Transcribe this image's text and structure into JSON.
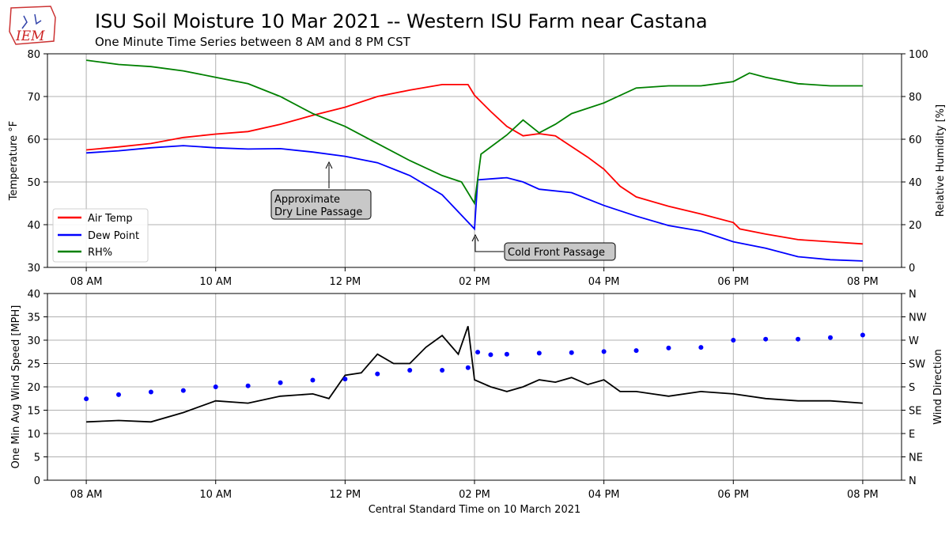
{
  "logo": {
    "text": "IEM"
  },
  "chart_data": [
    {
      "type": "line",
      "title": "ISU Soil Moisture 10 Mar 2021 -- Western ISU Farm near Castana",
      "subtitle": "One Minute Time Series between 8 AM and 8 PM CST",
      "xlabel": "",
      "ylabel": "Temperature °F",
      "y2label": "Relative Humidity [%]",
      "y2label_color": "#008000",
      "x_range": [
        7.4,
        20.6
      ],
      "ylim": [
        30,
        80
      ],
      "y2lim": [
        0,
        100
      ],
      "x_ticks": [
        8,
        10,
        12,
        14,
        16,
        18,
        20
      ],
      "x_tick_labels": [
        "08 AM",
        "10 AM",
        "12 PM",
        "02 PM",
        "04 PM",
        "06 PM",
        "08 PM"
      ],
      "y_ticks": [
        30,
        40,
        50,
        60,
        70,
        80
      ],
      "y2_ticks": [
        0,
        20,
        40,
        60,
        80,
        100
      ],
      "grid": true,
      "legend_position": "lower-left",
      "series": [
        {
          "name": "Air Temp",
          "color": "#ff0000",
          "axis": "left",
          "x": [
            8.0,
            8.5,
            9.0,
            9.5,
            10.0,
            10.5,
            11.0,
            11.5,
            12.0,
            12.5,
            13.0,
            13.5,
            13.9,
            14.0,
            14.25,
            14.5,
            14.75,
            15.0,
            15.25,
            15.5,
            15.75,
            16.0,
            16.25,
            16.5,
            17.0,
            17.5,
            18.0,
            18.1,
            18.5,
            19.0,
            19.5,
            20.0
          ],
          "y": [
            57.5,
            58.2,
            59.0,
            60.4,
            61.2,
            61.8,
            63.5,
            65.6,
            67.5,
            70.0,
            71.5,
            72.8,
            72.8,
            70.3,
            66.5,
            63.0,
            60.8,
            61.3,
            60.8,
            58.3,
            55.8,
            53.0,
            49.0,
            46.5,
            44.3,
            42.5,
            40.5,
            39.0,
            37.8,
            36.5,
            36.0,
            35.5
          ]
        },
        {
          "name": "Dew Point",
          "color": "#0000ff",
          "axis": "left",
          "x": [
            8.0,
            8.5,
            9.0,
            9.5,
            10.0,
            10.5,
            11.0,
            11.5,
            12.0,
            12.5,
            13.0,
            13.5,
            13.75,
            14.0,
            14.05,
            14.5,
            14.75,
            15.0,
            15.5,
            16.0,
            16.5,
            17.0,
            17.5,
            18.0,
            18.5,
            19.0,
            19.5,
            20.0
          ],
          "y": [
            56.8,
            57.3,
            58.0,
            58.5,
            58.0,
            57.7,
            57.8,
            57.0,
            56.0,
            54.5,
            51.5,
            47.0,
            43.0,
            39.0,
            50.5,
            51.0,
            50.0,
            48.3,
            47.5,
            44.5,
            42.0,
            39.8,
            38.5,
            36.0,
            34.5,
            32.5,
            31.8,
            31.5
          ]
        },
        {
          "name": "RH%",
          "color": "#008000",
          "axis": "right",
          "x": [
            8.0,
            8.5,
            9.0,
            9.5,
            10.0,
            10.5,
            11.0,
            11.5,
            12.0,
            12.5,
            13.0,
            13.5,
            13.8,
            14.0,
            14.1,
            14.5,
            14.75,
            15.0,
            15.25,
            15.5,
            16.0,
            16.5,
            17.0,
            17.5,
            18.0,
            18.25,
            18.5,
            19.0,
            19.5,
            20.0
          ],
          "y": [
            97,
            95,
            94,
            92,
            89,
            86,
            80,
            72,
            66,
            58,
            50,
            43,
            40,
            30,
            53,
            62,
            69,
            63,
            67,
            72,
            77,
            84,
            85,
            85,
            87,
            91,
            89,
            86,
            85,
            85
          ]
        }
      ],
      "annotations": [
        {
          "text_lines": [
            "Approximate",
            "Dry Line Passage"
          ],
          "arrow_x": 11.75,
          "arrow_y": 55
        },
        {
          "text_lines": [
            "Cold Front Passage"
          ],
          "arrow_x": 14.0,
          "arrow_y": 38
        }
      ]
    },
    {
      "type": "line",
      "title": "",
      "xlabel": "Central Standard Time on 10 March 2021",
      "ylabel": "One Min Avg Wind Speed [MPH]",
      "y2label": "Wind Direction",
      "y2label_color": "#0000ff",
      "x_range": [
        7.4,
        20.6
      ],
      "ylim": [
        0,
        40
      ],
      "y2lim": [
        0,
        360
      ],
      "x_ticks": [
        8,
        10,
        12,
        14,
        16,
        18,
        20
      ],
      "x_tick_labels": [
        "08 AM",
        "10 AM",
        "12 PM",
        "02 PM",
        "04 PM",
        "06 PM",
        "08 PM"
      ],
      "y_ticks": [
        0,
        5,
        10,
        15,
        20,
        25,
        30,
        35,
        40
      ],
      "y2_ticks": [
        0,
        45,
        90,
        135,
        180,
        225,
        270,
        315,
        360
      ],
      "y2_tick_labels": [
        "N",
        "NE",
        "E",
        "SE",
        "S",
        "SW",
        "W",
        "NW",
        "N"
      ],
      "grid": true,
      "series": [
        {
          "name": "",
          "color": "#000000",
          "axis": "left",
          "style": "line",
          "x": [
            8.0,
            8.5,
            9.0,
            9.5,
            10.0,
            10.5,
            11.0,
            11.5,
            11.75,
            12.0,
            12.25,
            12.5,
            12.75,
            13.0,
            13.25,
            13.5,
            13.75,
            13.9,
            14.0,
            14.25,
            14.5,
            14.75,
            15.0,
            15.25,
            15.5,
            15.75,
            16.0,
            16.25,
            16.5,
            16.75,
            17.0,
            17.5,
            18.0,
            18.5,
            19.0,
            19.5,
            20.0
          ],
          "y": [
            12.5,
            12.8,
            12.5,
            14.5,
            17.0,
            16.5,
            18.0,
            18.5,
            17.5,
            22.5,
            23.0,
            27.0,
            25.0,
            25.0,
            28.5,
            31.0,
            27.0,
            33.0,
            21.5,
            20.0,
            19.0,
            20.0,
            21.5,
            21.0,
            22.0,
            20.5,
            21.5,
            19.0,
            19.0,
            18.5,
            18.0,
            19.0,
            18.5,
            17.5,
            17.0,
            17.0,
            16.5
          ]
        },
        {
          "name": "",
          "color": "#0000ff",
          "axis": "right",
          "style": "points",
          "x": [
            8.0,
            8.5,
            9.0,
            9.5,
            10.0,
            10.5,
            11.0,
            11.5,
            12.0,
            12.5,
            13.0,
            13.5,
            13.9,
            14.05,
            14.25,
            14.5,
            15.0,
            15.5,
            16.0,
            16.5,
            17.0,
            17.5,
            18.0,
            18.5,
            19.0,
            19.5,
            20.0
          ],
          "y": [
            157,
            165,
            170,
            173,
            180,
            182,
            188,
            193,
            195,
            205,
            212,
            212,
            217,
            247,
            242,
            243,
            245,
            246,
            248,
            250,
            255,
            256,
            270,
            272,
            272,
            275,
            280
          ]
        }
      ]
    }
  ]
}
